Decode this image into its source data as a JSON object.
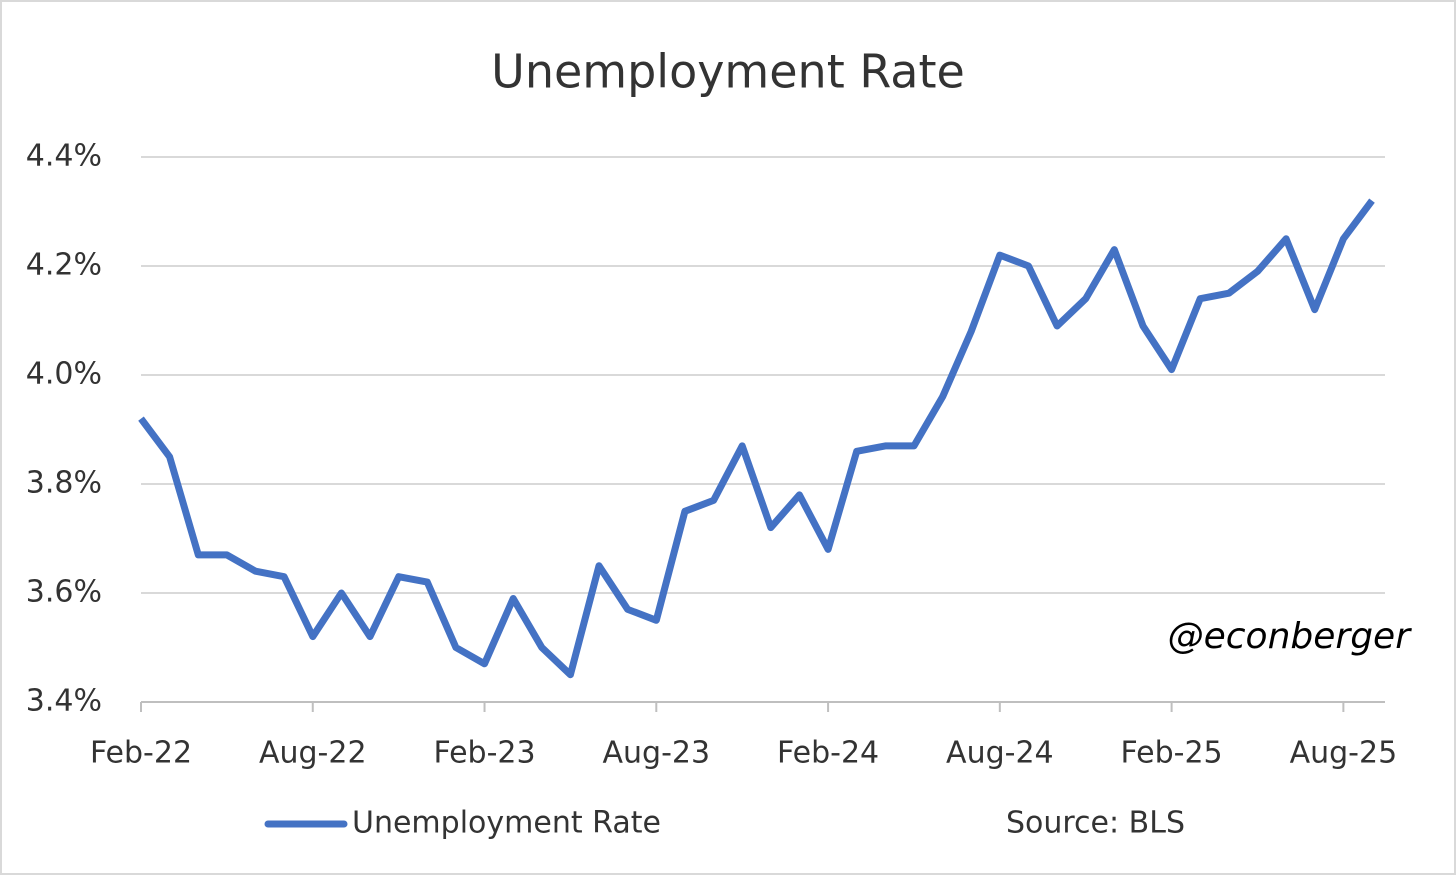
{
  "chart_data": {
    "type": "line",
    "title": "Unemployment Rate",
    "categories": [
      "Feb-22",
      null,
      null,
      null,
      null,
      null,
      "Aug-22",
      null,
      null,
      null,
      null,
      null,
      "Feb-23",
      null,
      null,
      null,
      null,
      null,
      "Aug-23",
      null,
      null,
      null,
      null,
      null,
      "Feb-24",
      null,
      null,
      null,
      null,
      null,
      "Aug-24",
      null,
      null,
      null,
      null,
      null,
      "Feb-25",
      null,
      null,
      null,
      null,
      null,
      "Aug-25",
      null
    ],
    "series": [
      {
        "name": "Unemployment Rate",
        "color": "#4472c4",
        "values": [
          3.92,
          3.85,
          3.67,
          3.67,
          3.64,
          3.63,
          3.52,
          3.6,
          3.52,
          3.63,
          3.62,
          3.5,
          3.47,
          3.59,
          3.5,
          3.45,
          3.65,
          3.57,
          3.55,
          3.75,
          3.77,
          3.87,
          3.72,
          3.78,
          3.68,
          3.86,
          3.87,
          3.87,
          3.96,
          4.08,
          4.22,
          4.2,
          4.09,
          4.14,
          4.23,
          4.09,
          4.01,
          4.14,
          4.15,
          4.19,
          4.25,
          4.12,
          4.25,
          4.32
        ]
      }
    ],
    "ylim": [
      3.4,
      4.4
    ],
    "yticks": [
      {
        "value": 3.4,
        "label": "3.4%"
      },
      {
        "value": 3.6,
        "label": "3.6%"
      },
      {
        "value": 3.8,
        "label": "3.8%"
      },
      {
        "value": 4.0,
        "label": "4.0%"
      },
      {
        "value": 4.2,
        "label": "4.2%"
      },
      {
        "value": 4.4,
        "label": "4.4%"
      }
    ],
    "grid": true,
    "annotations": [
      "@econberger",
      "Source: BLS"
    ],
    "legend": "bottom"
  }
}
